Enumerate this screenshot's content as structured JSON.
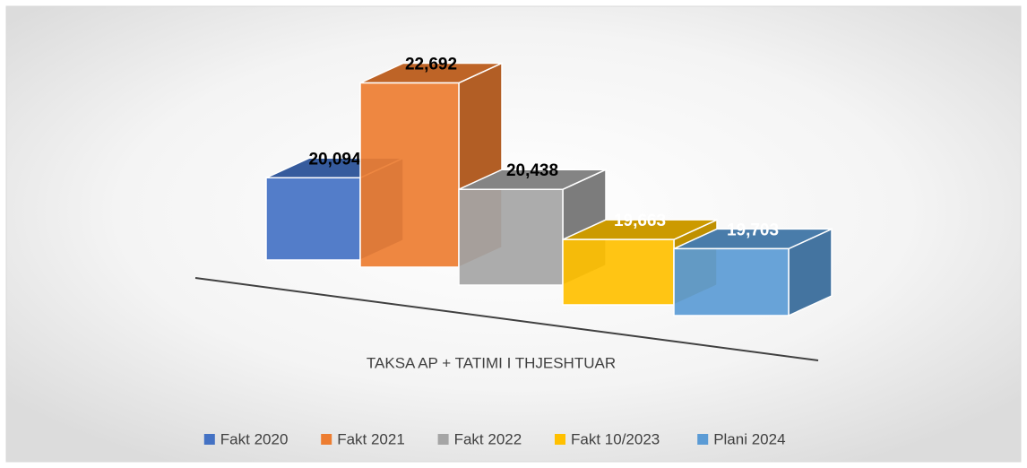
{
  "chart_data": {
    "type": "bar3d",
    "categories": [
      "TAKSA AP + TATIMI I THJESHTUAR"
    ],
    "ylim": [
      18000,
      23000
    ],
    "legend": "bottom",
    "series": [
      {
        "name": "Fakt 2020",
        "color": "#4472c4",
        "label_color": "#000000",
        "values": [
          20094
        ],
        "value_labels": [
          "20,094"
        ]
      },
      {
        "name": "Fakt 2021",
        "color": "#ed7d31",
        "label_color": "#000000",
        "values": [
          22692
        ],
        "value_labels": [
          "22,692"
        ]
      },
      {
        "name": "Fakt 2022",
        "color": "#a5a5a5",
        "label_color": "#000000",
        "values": [
          20438
        ],
        "value_labels": [
          "20,438"
        ]
      },
      {
        "name": "Fakt 10/2023",
        "color": "#ffc000",
        "label_color": "#ffffff",
        "values": [
          19663
        ],
        "value_labels": [
          "19,663"
        ]
      },
      {
        "name": "Plani 2024",
        "color": "#5b9bd5",
        "label_color": "#ffffff",
        "values": [
          19703
        ],
        "value_labels": [
          "19,703"
        ]
      }
    ]
  }
}
